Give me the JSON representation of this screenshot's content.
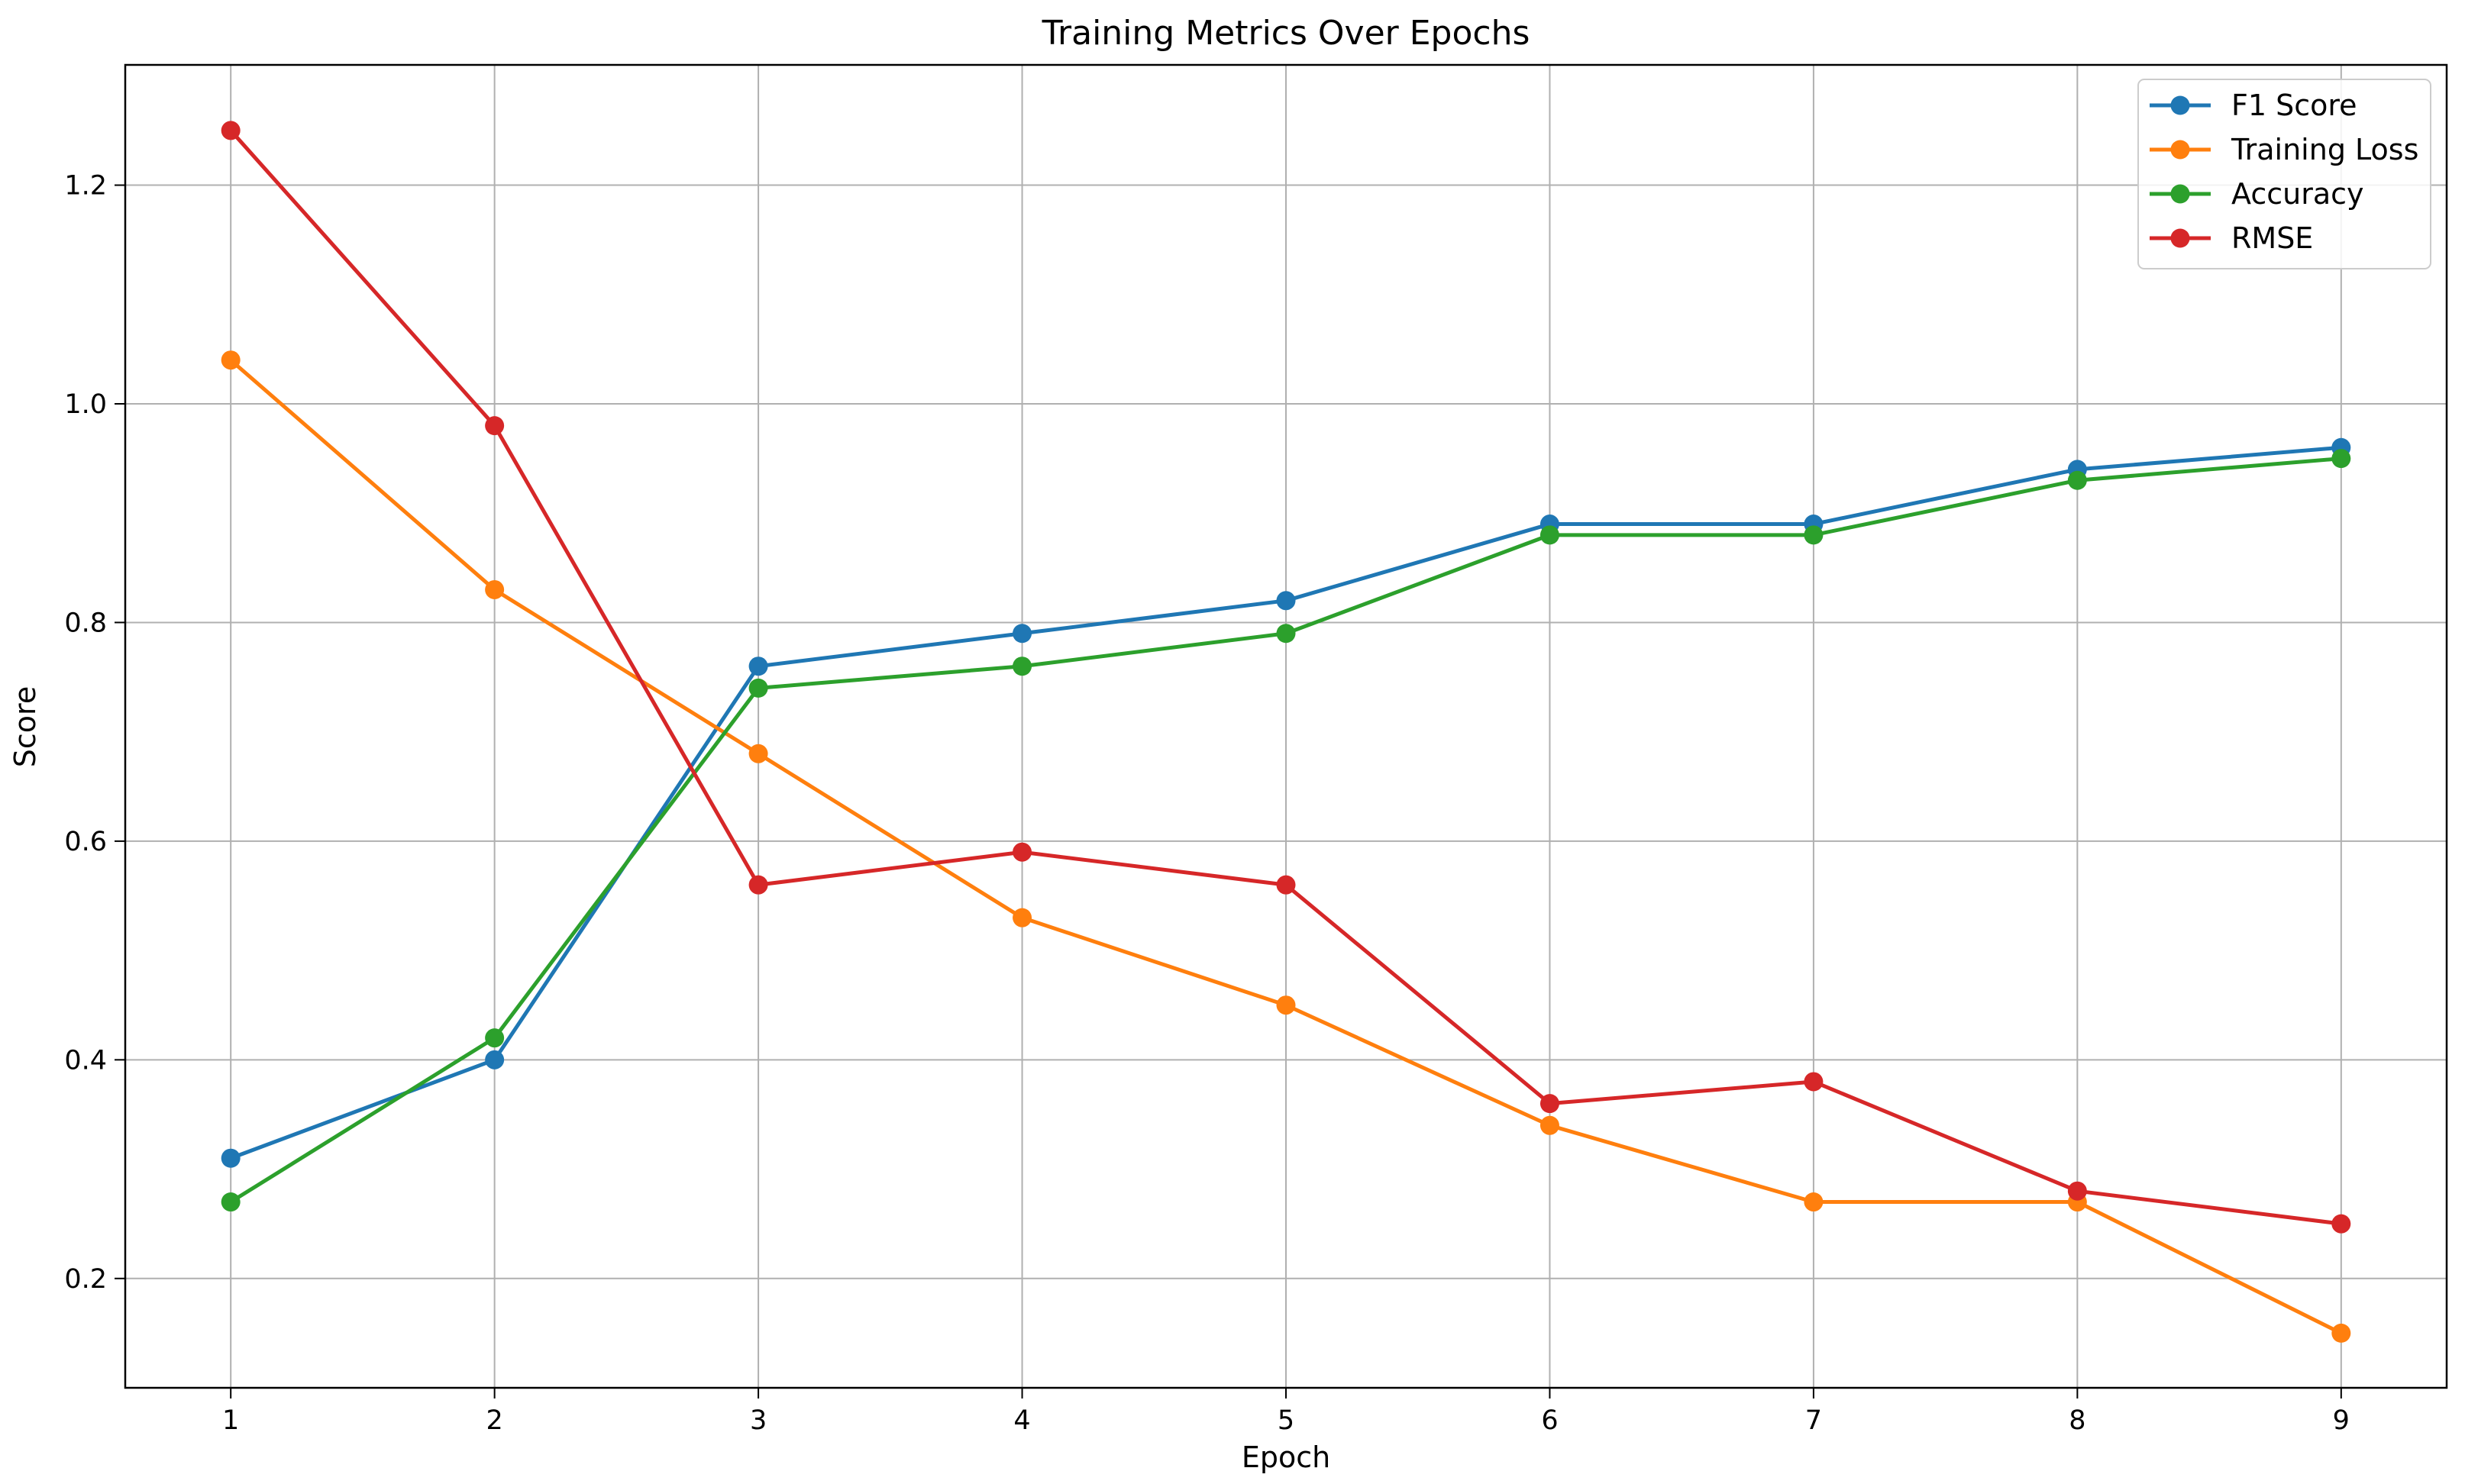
{
  "chart_data": {
    "type": "line",
    "title": "Training Metrics Over Epochs",
    "xlabel": "Epoch",
    "ylabel": "Score",
    "x": [
      1,
      2,
      3,
      4,
      5,
      6,
      7,
      8,
      9
    ],
    "xlim": [
      0.6,
      9.4
    ],
    "ylim": [
      0.1,
      1.31
    ],
    "xticks": [
      1,
      2,
      3,
      4,
      5,
      6,
      7,
      8,
      9
    ],
    "yticks": [
      0.2,
      0.4,
      0.6,
      0.8,
      1.0,
      1.2
    ],
    "ytick_labels": [
      "0.2",
      "0.4",
      "0.6",
      "0.8",
      "1.0",
      "1.2"
    ],
    "grid": true,
    "legend_position": "top-right",
    "series": [
      {
        "name": "F1 Score",
        "color": "#1f77b4",
        "values": [
          0.31,
          0.4,
          0.76,
          0.79,
          0.82,
          0.89,
          0.89,
          0.94,
          0.96
        ]
      },
      {
        "name": "Training Loss",
        "color": "#ff7f0e",
        "values": [
          1.04,
          0.83,
          0.68,
          0.53,
          0.45,
          0.34,
          0.27,
          0.27,
          0.15
        ]
      },
      {
        "name": "Accuracy",
        "color": "#2ca02c",
        "values": [
          0.27,
          0.42,
          0.74,
          0.76,
          0.79,
          0.88,
          0.88,
          0.93,
          0.95
        ]
      },
      {
        "name": "RMSE",
        "color": "#d62728",
        "values": [
          1.25,
          0.98,
          0.56,
          0.59,
          0.56,
          0.36,
          0.38,
          0.28,
          0.25
        ]
      }
    ]
  }
}
